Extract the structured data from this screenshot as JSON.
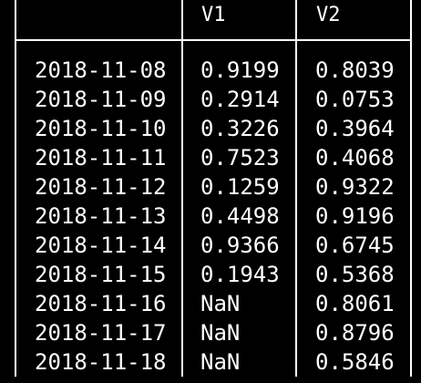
{
  "columns": [
    "",
    "V1",
    "V2"
  ],
  "rows": [
    {
      "date": "2018-11-08",
      "v1": "0.9199",
      "v2": "0.8039"
    },
    {
      "date": "2018-11-09",
      "v1": "0.2914",
      "v2": "0.0753"
    },
    {
      "date": "2018-11-10",
      "v1": "0.3226",
      "v2": "0.3964"
    },
    {
      "date": "2018-11-11",
      "v1": "0.7523",
      "v2": "0.4068"
    },
    {
      "date": "2018-11-12",
      "v1": "0.1259",
      "v2": "0.9322"
    },
    {
      "date": "2018-11-13",
      "v1": "0.4498",
      "v2": "0.9196"
    },
    {
      "date": "2018-11-14",
      "v1": "0.9366",
      "v2": "0.6745"
    },
    {
      "date": "2018-11-15",
      "v1": "0.1943",
      "v2": "0.5368"
    },
    {
      "date": "2018-11-16",
      "v1": "NaN",
      "v2": "0.8061"
    },
    {
      "date": "2018-11-17",
      "v1": "NaN",
      "v2": "0.8796"
    },
    {
      "date": "2018-11-18",
      "v1": "NaN",
      "v2": "0.5846"
    }
  ],
  "colors": {
    "background": "#000000",
    "text": "#ffffff",
    "border": "#ffffff"
  }
}
